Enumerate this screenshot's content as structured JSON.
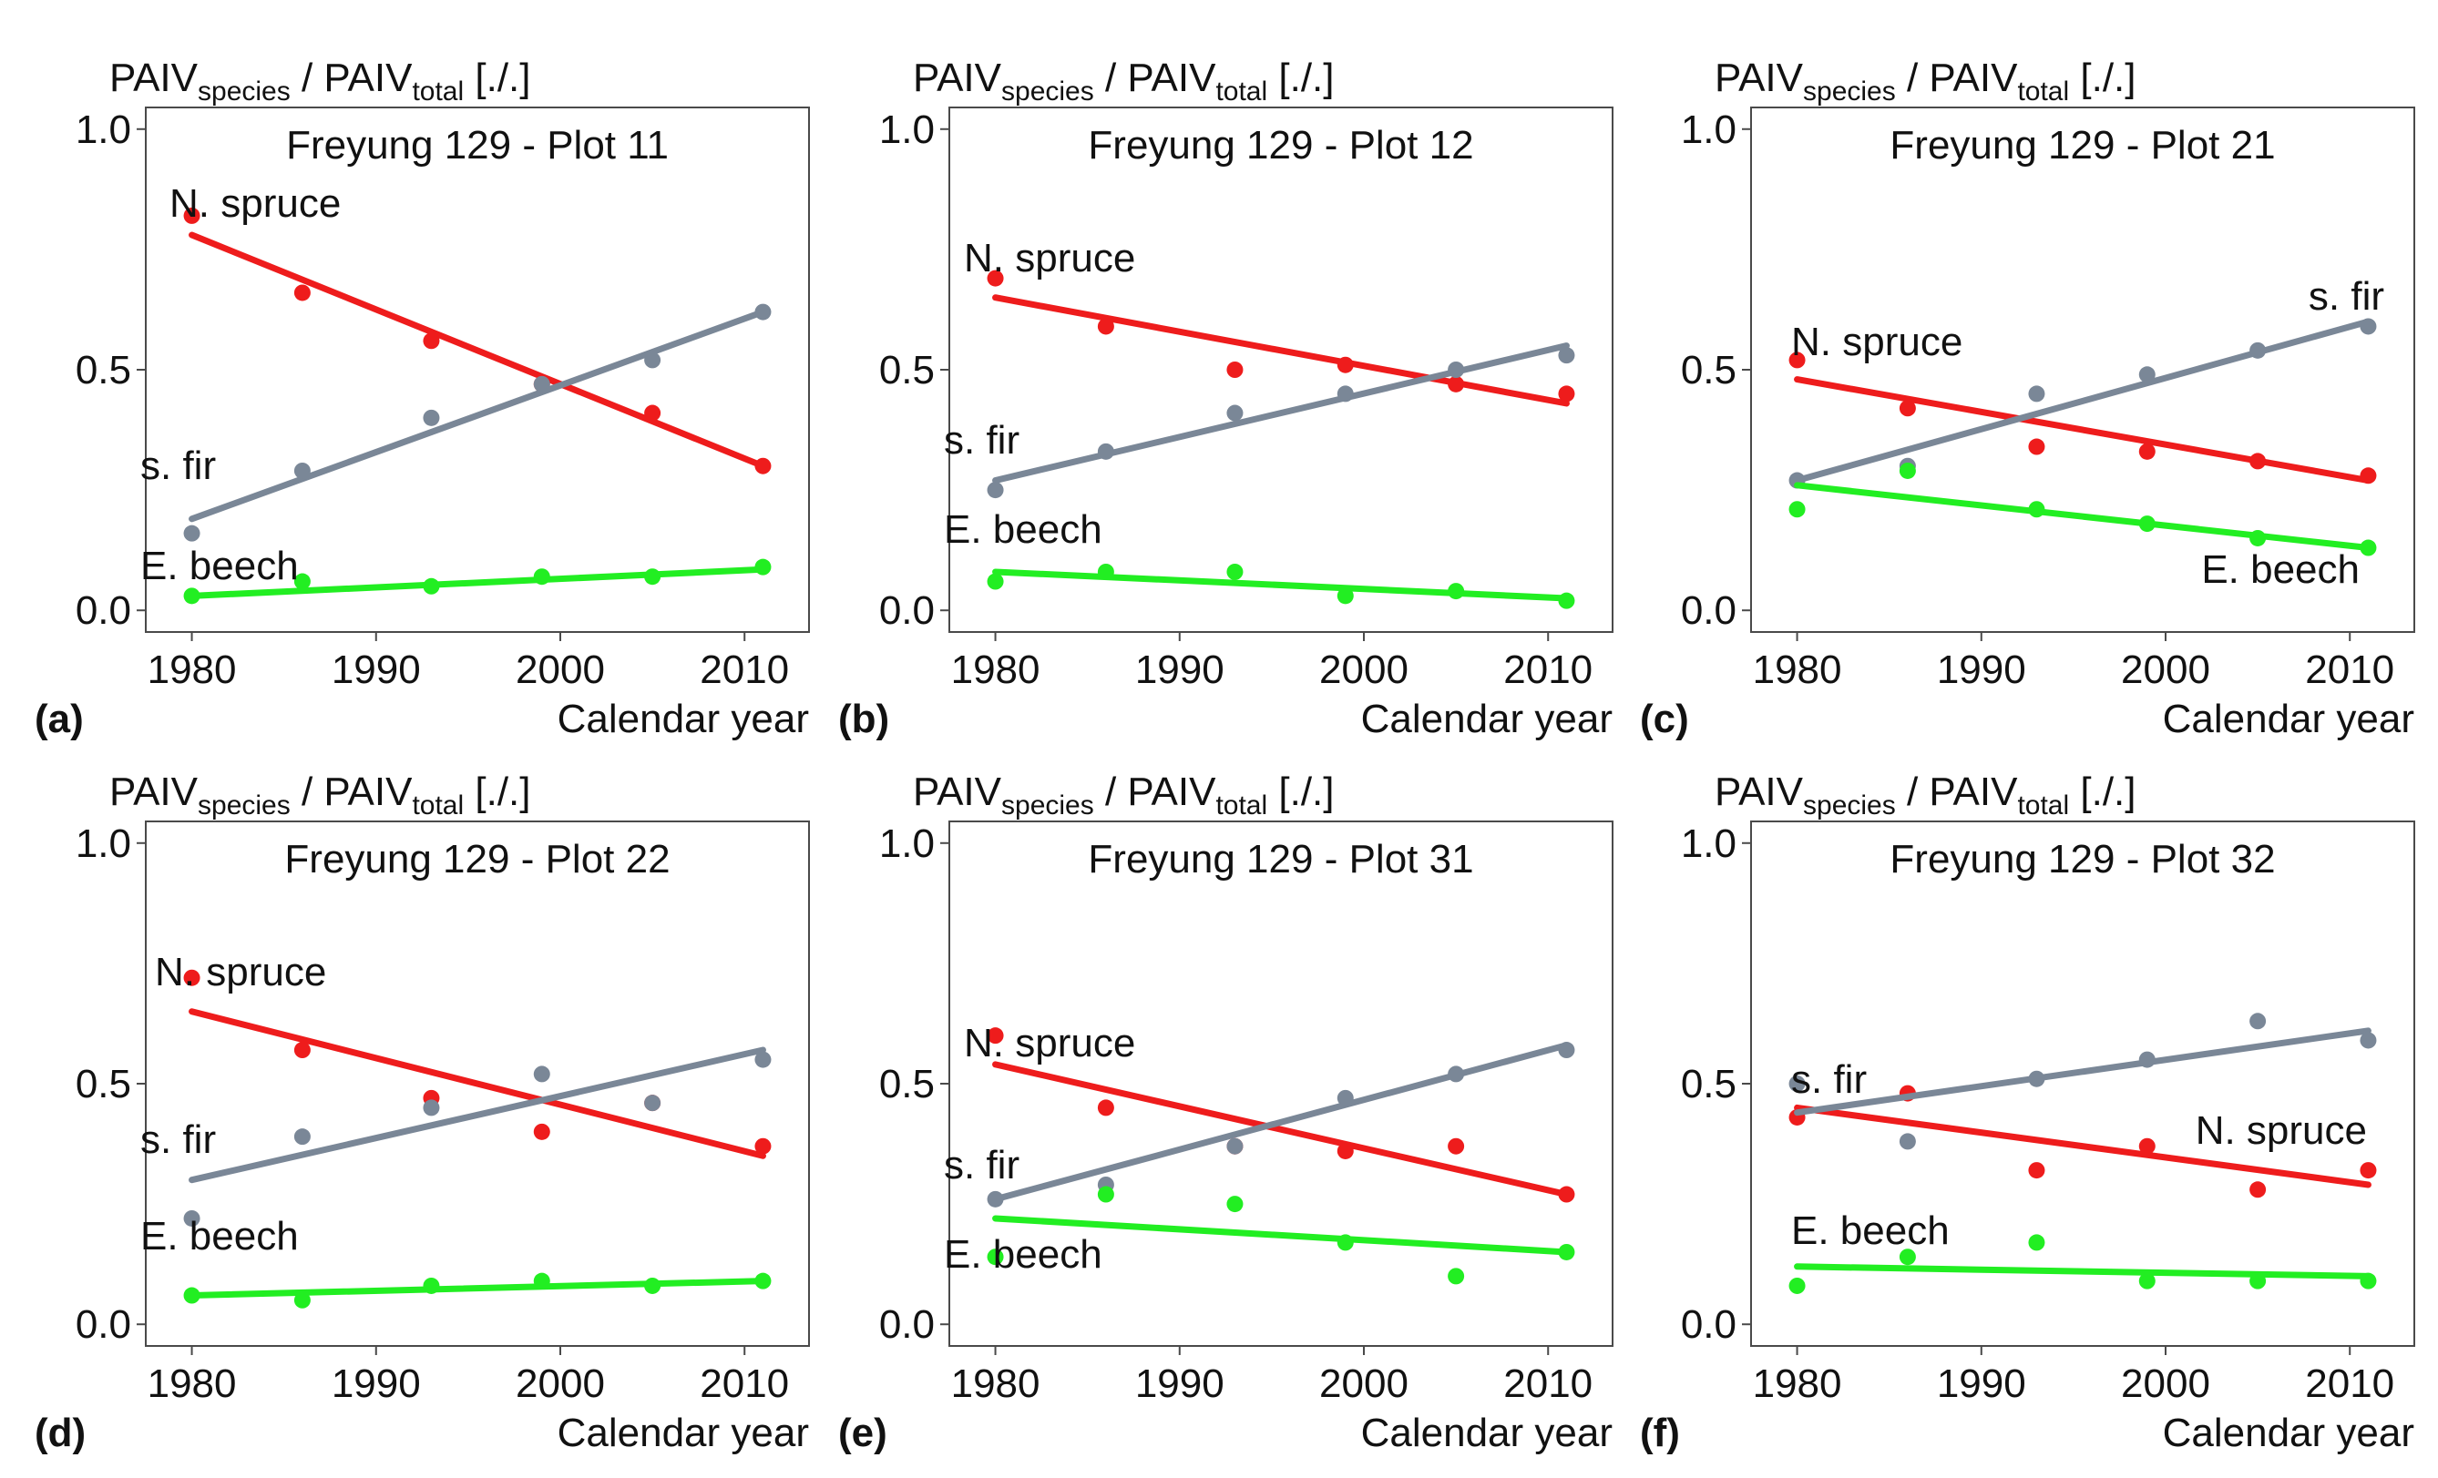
{
  "chart_data": [
    {
      "type": "scatter",
      "panel_label": "(a)",
      "title": "Freyung 129 - Plot 11",
      "ylabel": {
        "base1": "PAIV",
        "sub1": "species",
        "sep": " / ",
        "base2": "PAIV",
        "sub2": "total",
        "unit": " [./.]"
      },
      "xlabel": "Calendar year",
      "xlim": [
        1977.5,
        2013.5
      ],
      "ylim": [
        -0.045,
        1.045
      ],
      "xticks": [
        "1980",
        "1990",
        "2000",
        "2010"
      ],
      "yticks": [
        "0.0",
        "0.5",
        "1.0"
      ],
      "x": [
        1980,
        1986,
        1993,
        1999,
        2005,
        2011
      ],
      "grid": false,
      "series": [
        {
          "name": "N. spruce",
          "color": "#ee1c1c",
          "values": [
            0.82,
            0.66,
            0.56,
            0.47,
            0.41,
            0.3
          ],
          "fit": [
            0.78,
            0.3
          ]
        },
        {
          "name": "s. fir",
          "color": "#7a8797",
          "values": [
            0.16,
            0.29,
            0.4,
            0.47,
            0.52,
            0.62
          ],
          "fit": [
            0.19,
            0.62
          ]
        },
        {
          "name": "E. beech",
          "color": "#22ee22",
          "values": [
            0.03,
            0.06,
            0.05,
            0.07,
            0.07,
            0.09
          ],
          "fit": [
            0.03,
            0.085
          ]
        }
      ]
    },
    {
      "type": "scatter",
      "panel_label": "(b)",
      "title": "Freyung 129 - Plot 12",
      "ylabel": {
        "base1": "PAIV",
        "sub1": "species",
        "sep": " / ",
        "base2": "PAIV",
        "sub2": "total",
        "unit": " [./.]"
      },
      "xlabel": "Calendar year",
      "xlim": [
        1977.5,
        2013.5
      ],
      "ylim": [
        -0.045,
        1.045
      ],
      "xticks": [
        "1980",
        "1990",
        "2000",
        "2010"
      ],
      "yticks": [
        "0.0",
        "0.5",
        "1.0"
      ],
      "x": [
        1980,
        1986,
        1993,
        1999,
        2005,
        2011
      ],
      "grid": false,
      "series": [
        {
          "name": "N. spruce",
          "color": "#ee1c1c",
          "values": [
            0.69,
            0.59,
            0.5,
            0.51,
            0.47,
            0.45
          ],
          "fit": [
            0.65,
            0.43
          ]
        },
        {
          "name": "s. fir",
          "color": "#7a8797",
          "values": [
            0.25,
            0.33,
            0.41,
            0.45,
            0.5,
            0.53
          ],
          "fit": [
            0.27,
            0.55
          ]
        },
        {
          "name": "E. beech",
          "color": "#22ee22",
          "values": [
            0.06,
            0.08,
            0.08,
            0.03,
            0.04,
            0.02
          ],
          "fit": [
            0.08,
            0.025
          ]
        }
      ]
    },
    {
      "type": "scatter",
      "panel_label": "(c)",
      "title": "Freyung 129 - Plot 21",
      "ylabel": {
        "base1": "PAIV",
        "sub1": "species",
        "sep": " / ",
        "base2": "PAIV",
        "sub2": "total",
        "unit": " [./.]"
      },
      "xlabel": "Calendar year",
      "xlim": [
        1977.5,
        2013.5
      ],
      "ylim": [
        -0.045,
        1.045
      ],
      "xticks": [
        "1980",
        "1990",
        "2000",
        "2010"
      ],
      "yticks": [
        "0.0",
        "0.5",
        "1.0"
      ],
      "x": [
        1980,
        1986,
        1993,
        1999,
        2005,
        2011
      ],
      "grid": false,
      "series": [
        {
          "name": "N. spruce",
          "color": "#ee1c1c",
          "values": [
            0.52,
            0.42,
            0.34,
            0.33,
            0.31,
            0.28
          ],
          "fit": [
            0.48,
            0.27
          ]
        },
        {
          "name": "s. fir",
          "color": "#7a8797",
          "values": [
            0.27,
            0.3,
            0.45,
            0.49,
            0.54,
            0.59
          ],
          "fit": [
            0.27,
            0.6
          ]
        },
        {
          "name": "E. beech",
          "color": "#22ee22",
          "values": [
            0.21,
            0.29,
            0.21,
            0.18,
            0.15,
            0.13
          ],
          "fit": [
            0.26,
            0.13
          ]
        }
      ]
    },
    {
      "type": "scatter",
      "panel_label": "(d)",
      "title": "Freyung 129 - Plot 22",
      "ylabel": {
        "base1": "PAIV",
        "sub1": "species",
        "sep": " / ",
        "base2": "PAIV",
        "sub2": "total",
        "unit": " [./.]"
      },
      "xlabel": "Calendar year",
      "xlim": [
        1977.5,
        2013.5
      ],
      "ylim": [
        -0.045,
        1.045
      ],
      "xticks": [
        "1980",
        "1990",
        "2000",
        "2010"
      ],
      "yticks": [
        "0.0",
        "0.5",
        "1.0"
      ],
      "x": [
        1980,
        1986,
        1993,
        1999,
        2005,
        2011
      ],
      "grid": false,
      "series": [
        {
          "name": "N. spruce",
          "color": "#ee1c1c",
          "values": [
            0.72,
            0.57,
            0.47,
            0.4,
            0.46,
            0.37
          ],
          "fit": [
            0.65,
            0.35
          ]
        },
        {
          "name": "s. fir",
          "color": "#7a8797",
          "values": [
            0.22,
            0.39,
            0.45,
            0.52,
            0.46,
            0.55
          ],
          "fit": [
            0.3,
            0.57
          ]
        },
        {
          "name": "E. beech",
          "color": "#22ee22",
          "values": [
            0.06,
            0.05,
            0.08,
            0.09,
            0.08,
            0.09
          ],
          "fit": [
            0.06,
            0.09
          ]
        }
      ]
    },
    {
      "type": "scatter",
      "panel_label": "(e)",
      "title": "Freyung 129 - Plot 31",
      "ylabel": {
        "base1": "PAIV",
        "sub1": "species",
        "sep": " / ",
        "base2": "PAIV",
        "sub2": "total",
        "unit": " [./.]"
      },
      "xlabel": "Calendar year",
      "xlim": [
        1977.5,
        2013.5
      ],
      "ylim": [
        -0.045,
        1.045
      ],
      "xticks": [
        "1980",
        "1990",
        "2000",
        "2010"
      ],
      "yticks": [
        "0.0",
        "0.5",
        "1.0"
      ],
      "x": [
        1980,
        1986,
        1993,
        1999,
        2005,
        2011
      ],
      "grid": false,
      "series": [
        {
          "name": "N. spruce",
          "color": "#ee1c1c",
          "values": [
            0.6,
            0.45,
            0.37,
            0.36,
            0.37,
            0.27
          ],
          "fit": [
            0.54,
            0.27
          ]
        },
        {
          "name": "s. fir",
          "color": "#7a8797",
          "values": [
            0.26,
            0.29,
            0.37,
            0.47,
            0.52,
            0.57
          ],
          "fit": [
            0.26,
            0.58
          ]
        },
        {
          "name": "E. beech",
          "color": "#22ee22",
          "values": [
            0.14,
            0.27,
            0.25,
            0.17,
            0.1,
            0.15
          ],
          "fit": [
            0.22,
            0.15
          ]
        }
      ]
    },
    {
      "type": "scatter",
      "panel_label": "(f)",
      "title": "Freyung 129 - Plot 32",
      "ylabel": {
        "base1": "PAIV",
        "sub1": "species",
        "sep": " / ",
        "base2": "PAIV",
        "sub2": "total",
        "unit": " [./.]"
      },
      "xlabel": "Calendar year",
      "xlim": [
        1977.5,
        2013.5
      ],
      "ylim": [
        -0.045,
        1.045
      ],
      "xticks": [
        "1980",
        "1990",
        "2000",
        "2010"
      ],
      "yticks": [
        "0.0",
        "0.5",
        "1.0"
      ],
      "x": [
        1980,
        1986,
        1993,
        1999,
        2005,
        2011
      ],
      "grid": false,
      "series": [
        {
          "name": "N. spruce",
          "color": "#ee1c1c",
          "values": [
            0.43,
            0.48,
            0.32,
            0.37,
            0.28,
            0.32
          ],
          "fit": [
            0.45,
            0.29
          ]
        },
        {
          "name": "s. fir",
          "color": "#7a8797",
          "values": [
            0.5,
            0.38,
            0.51,
            0.55,
            0.63,
            0.59
          ],
          "fit": [
            0.44,
            0.61
          ]
        },
        {
          "name": "E. beech",
          "color": "#22ee22",
          "values": [
            0.08,
            0.14,
            0.17,
            0.09,
            0.09,
            0.09
          ],
          "fit": [
            0.12,
            0.1
          ]
        }
      ]
    }
  ]
}
